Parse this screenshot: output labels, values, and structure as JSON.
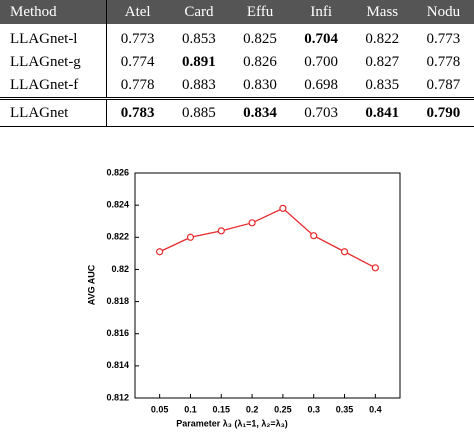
{
  "table": {
    "header": [
      "Method",
      "Atel",
      "Card",
      "Effu",
      "Infi",
      "Mass",
      "Nodu"
    ],
    "rows": [
      [
        "LLAGnet-l",
        "0.773",
        "0.853",
        "0.825",
        "0.704",
        "0.822",
        "0.773"
      ],
      [
        "LLAGnet-g",
        "0.774",
        "0.891",
        "0.826",
        "0.700",
        "0.827",
        "0.778"
      ],
      [
        "LLAGnet-f",
        "0.778",
        "0.883",
        "0.830",
        "0.698",
        "0.835",
        "0.787"
      ],
      [
        "LLAGnet",
        "0.783",
        "0.885",
        "0.834",
        "0.703",
        "0.841",
        "0.790"
      ]
    ]
  },
  "chart_data": {
    "type": "line",
    "x_label": "Parameter λ₃ (λ₁=1, λ₂=λ₃)",
    "y_label": "AVG AUC",
    "x": [
      0.05,
      0.1,
      0.15,
      0.2,
      0.25,
      0.3,
      0.35,
      0.4
    ],
    "values": [
      0.8211,
      0.822,
      0.8224,
      0.8229,
      0.8238,
      0.8221,
      0.8211,
      0.8201
    ],
    "color": "#e8292b",
    "xlim": [
      0.01,
      0.44
    ],
    "ylim": [
      0.812,
      0.826
    ],
    "xticks": [
      0.05,
      0.1,
      0.15,
      0.2,
      0.25,
      0.3,
      0.35,
      0.4
    ],
    "yticks": [
      0.812,
      0.814,
      0.816,
      0.818,
      0.82,
      0.822,
      0.824,
      0.826
    ],
    "grid": false
  }
}
